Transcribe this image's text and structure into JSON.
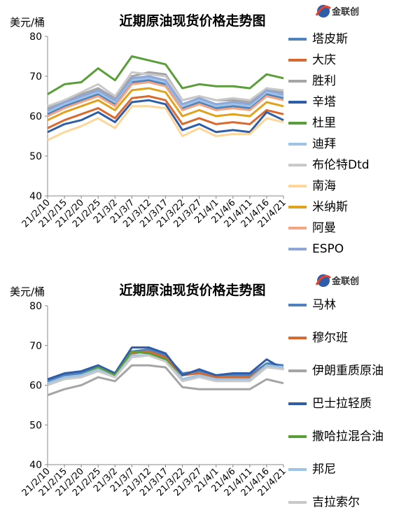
{
  "chart_data": [
    {
      "type": "line",
      "title": "近期原油现货价格走势图",
      "y_label": "美元/桶",
      "logo": "金联创",
      "categories": [
        "21/2/10",
        "21/2/15",
        "21/2/20",
        "21/2/25",
        "21/3/2",
        "21/3/7",
        "21/3/12",
        "21/3/17",
        "21/3/22",
        "21/3/27",
        "21/4/1",
        "21/4/6",
        "21/4/11",
        "21/4/16",
        "21/4/21"
      ],
      "ylim": [
        40,
        80
      ],
      "yticks": [
        40,
        50,
        60,
        70,
        80
      ],
      "grid": false,
      "series": [
        {
          "name": "塔皮斯",
          "color": "#4f81bd",
          "values": [
            60.5,
            62.5,
            64,
            65.5,
            63,
            68.5,
            69,
            68,
            62,
            63.5,
            62,
            62.5,
            62,
            65.5,
            64.5
          ]
        },
        {
          "name": "大庆",
          "color": "#d8692f",
          "values": [
            57,
            59,
            60.5,
            62,
            59.5,
            64.5,
            65,
            64,
            58,
            59.5,
            58,
            58.5,
            58,
            61.5,
            60.5
          ]
        },
        {
          "name": "胜利",
          "color": "#a5a5a5",
          "values": [
            62,
            64,
            65.5,
            67,
            64.5,
            70,
            71,
            70.5,
            64,
            65,
            64,
            64,
            63.5,
            67,
            66
          ]
        },
        {
          "name": "辛塔",
          "color": "#2f5da8",
          "values": [
            56,
            58,
            59,
            61,
            58.5,
            63.5,
            64,
            63,
            56.5,
            58,
            56,
            56.5,
            56,
            61,
            59
          ]
        },
        {
          "name": "杜里",
          "color": "#5a9e3a",
          "values": [
            65.5,
            68,
            68.5,
            72,
            69,
            75,
            74,
            73,
            67,
            68,
            67.5,
            67.5,
            67,
            70.5,
            69.5
          ]
        },
        {
          "name": "迪拜",
          "color": "#9dc3e6",
          "values": [
            61,
            63,
            64.5,
            66,
            63.5,
            69,
            69.5,
            68.5,
            62.5,
            64,
            62.5,
            63,
            62.5,
            66,
            65
          ]
        },
        {
          "name": "布伦特Dtd",
          "color": "#c9c9c9",
          "values": [
            62.5,
            64,
            66,
            68,
            65,
            71,
            70.5,
            70,
            64,
            65,
            64,
            64.5,
            64,
            67,
            66.5
          ]
        },
        {
          "name": "南海",
          "color": "#ffd699",
          "values": [
            54,
            56,
            57.5,
            59.5,
            57,
            62.5,
            62.5,
            62,
            55,
            57,
            55,
            55.5,
            55.5,
            59.5,
            58.5
          ]
        },
        {
          "name": "米纳斯",
          "color": "#e0a21c",
          "values": [
            59,
            61,
            62.5,
            64,
            61.5,
            66.5,
            67,
            66,
            60,
            61.5,
            60,
            60.5,
            60,
            63.5,
            62.5
          ]
        },
        {
          "name": "阿曼",
          "color": "#f4a582",
          "values": [
            60,
            62,
            63.5,
            65,
            62.5,
            68,
            68.5,
            67.5,
            61.5,
            63,
            61.5,
            62,
            61.5,
            65,
            64
          ]
        },
        {
          "name": "ESPO",
          "color": "#8fa6d9",
          "values": [
            61.5,
            63.5,
            65,
            66.5,
            64,
            69.5,
            70,
            69,
            63,
            64.5,
            63,
            63.5,
            63,
            66.5,
            65.5
          ]
        }
      ]
    },
    {
      "type": "line",
      "title": "近期原油现货价格走势图",
      "y_label": "美元/桶",
      "logo": "金联创",
      "categories": [
        "21/2/10",
        "21/2/15",
        "21/2/20",
        "21/2/25",
        "21/3/2",
        "21/3/7",
        "21/3/12",
        "21/3/17",
        "21/3/22",
        "21/3/27",
        "21/4/1",
        "21/4/6",
        "21/4/11",
        "21/4/16",
        "21/4/21"
      ],
      "ylim": [
        40,
        80
      ],
      "yticks": [
        40,
        50,
        60,
        70,
        80
      ],
      "grid": false,
      "series": [
        {
          "name": "马林",
          "color": "#4f81bd",
          "values": [
            61,
            62.5,
            63,
            64.5,
            63,
            68.5,
            69,
            67.5,
            63,
            63.5,
            62.5,
            62.5,
            62.5,
            65.5,
            65
          ]
        },
        {
          "name": "穆尔班",
          "color": "#d8692f",
          "values": [
            60.5,
            62,
            62.5,
            64,
            62.5,
            68,
            68.5,
            67,
            62.5,
            63,
            62,
            62,
            62,
            65,
            64.5
          ]
        },
        {
          "name": "伊朗重质原油",
          "color": "#a5a5a5",
          "values": [
            57.5,
            59,
            60,
            62,
            61,
            65,
            65,
            64.5,
            59.5,
            59,
            59,
            59,
            59,
            61.5,
            60.5
          ]
        },
        {
          "name": "巴士拉轻质",
          "color": "#2f5da8",
          "values": [
            61.5,
            63,
            63.5,
            65,
            63,
            69.5,
            69.5,
            68,
            62.5,
            64,
            62.5,
            63,
            63,
            66.5,
            64
          ]
        },
        {
          "name": "撒哈拉混合油",
          "color": "#5a9e3a",
          "values": [
            60.5,
            62,
            62.5,
            64.5,
            62.5,
            68.5,
            68,
            66.5,
            61.5,
            62.5,
            61.5,
            61.5,
            61.5,
            65,
            64
          ]
        },
        {
          "name": "邦尼",
          "color": "#9dc3e6",
          "values": [
            60.5,
            62,
            62.5,
            64,
            62,
            67.5,
            67.5,
            66,
            61.5,
            62.5,
            61.5,
            61.5,
            61.5,
            65,
            64.5
          ]
        },
        {
          "name": "吉拉索尔",
          "color": "#c9c9c9",
          "values": [
            60,
            61.5,
            62,
            63.5,
            62,
            67,
            67.5,
            66,
            61,
            62,
            61,
            61,
            61,
            64.5,
            64
          ]
        }
      ]
    }
  ]
}
